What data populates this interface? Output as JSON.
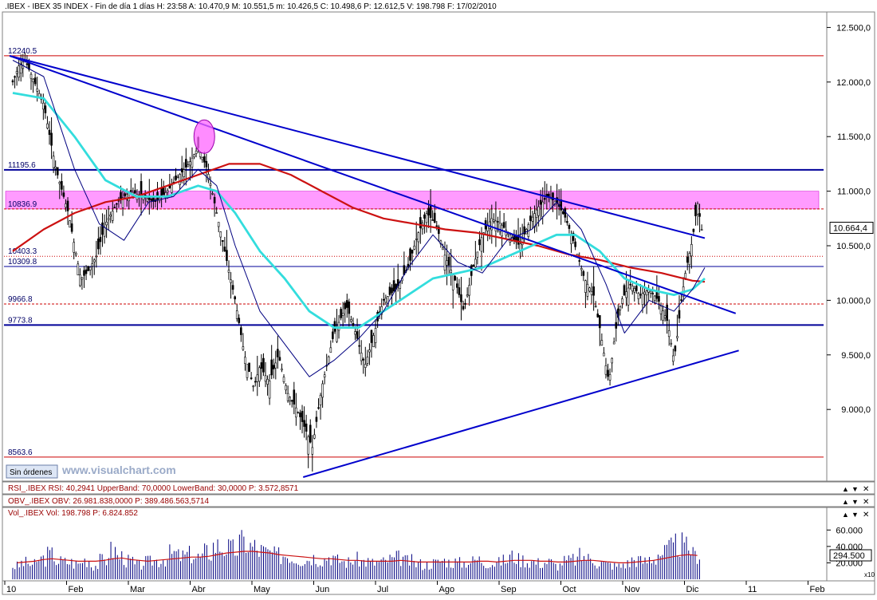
{
  "header": {
    "text": ".IBEX - IBEX 35 INDEX - Fin de día 1 días  H: 23:58  A: 10.470,9  M: 10.551,5  m: 10.426,5  C: 10.498,6  P: 12.612,5  V: 198.798  F: 17/02/2010"
  },
  "price_panel": {
    "current_price_label": "10.664,4",
    "orders_button": "Sin órdenes",
    "watermark": "www.visualchart.com"
  },
  "rsi_panel": {
    "label": "RSI_.IBEX RSI: 40,2941  UpperBand: 70,0000  LowerBand: 30,0000  P: 3.572,8571"
  },
  "obv_panel": {
    "label": "OBV_.IBEX OBV: 26.981.838,0000  P: 389.486.563,5714"
  },
  "vol_panel": {
    "label": "Vol_.IBEX Vol: 198.798  P: 6.824.852",
    "current_label": "294.500",
    "multiplier": "x10"
  },
  "colors": {
    "background": "#ffffff",
    "candles": "#000000",
    "trendlines": "#0000cc",
    "ma_fast": "#000080",
    "ma_mid": "#33dddd",
    "ma_slow": "#cc1111",
    "highlight_band": "#ff66ff",
    "level_red": "#cc0000",
    "level_blue": "#000099",
    "volume_bars": "#000080",
    "volume_avg": "#cc1111"
  },
  "chart_data": {
    "type": "candlestick",
    "title": ".IBEX - IBEX 35 INDEX",
    "x_tick_labels": [
      "10",
      "Feb",
      "Mar",
      "Abr",
      "May",
      "Jun",
      "Jul",
      "Ago",
      "Sep",
      "Oct",
      "Nov",
      "Dic",
      "11",
      "Feb"
    ],
    "y_tick_labels": [
      "12.500,0",
      "12.000,0",
      "11.500,0",
      "11.000,0",
      "10.500,0",
      "10.000,0",
      "9.500,0",
      "9.000,0"
    ],
    "y_ticks": [
      12500,
      12000,
      11500,
      11000,
      10500,
      10000,
      9500,
      9000
    ],
    "y_range": [
      8380,
      12620
    ],
    "levels": [
      {
        "label": "12240.5",
        "value": 12240.5,
        "style": "solid-red"
      },
      {
        "label": "11195.6",
        "value": 11195.6,
        "style": "solid-blue"
      },
      {
        "label": "10836.9",
        "value": 10836.9,
        "style": "dashed-red"
      },
      {
        "label": "10403.3",
        "value": 10403.3,
        "style": "dotted-red"
      },
      {
        "label": "10309.8",
        "value": 10309.8,
        "style": "solid-blue-thin"
      },
      {
        "label": "9966.8",
        "value": 9966.8,
        "style": "dashed-red"
      },
      {
        "label": "9773.8",
        "value": 9773.8,
        "style": "solid-blue"
      },
      {
        "label": "8563.6",
        "value": 8563.6,
        "style": "solid-red"
      }
    ],
    "highlight_band": [
      10836.9,
      11000
    ],
    "price_path": [
      {
        "m": 0.0,
        "v": 12000
      },
      {
        "m": 0.1,
        "v": 12150
      },
      {
        "m": 0.2,
        "v": 12200
      },
      {
        "m": 0.35,
        "v": 12000
      },
      {
        "m": 0.5,
        "v": 11800
      },
      {
        "m": 0.6,
        "v": 11500
      },
      {
        "m": 0.7,
        "v": 11200
      },
      {
        "m": 0.8,
        "v": 11000
      },
      {
        "m": 0.9,
        "v": 10800
      },
      {
        "m": 1.0,
        "v": 10500
      },
      {
        "m": 1.1,
        "v": 10200
      },
      {
        "m": 1.2,
        "v": 10250
      },
      {
        "m": 1.35,
        "v": 10400
      },
      {
        "m": 1.5,
        "v": 10700
      },
      {
        "m": 1.7,
        "v": 10900
      },
      {
        "m": 1.9,
        "v": 11000
      },
      {
        "m": 2.1,
        "v": 10950
      },
      {
        "m": 2.3,
        "v": 10900
      },
      {
        "m": 2.5,
        "v": 11000
      },
      {
        "m": 2.7,
        "v": 11150
      },
      {
        "m": 2.85,
        "v": 11250
      },
      {
        "m": 3.0,
        "v": 11400
      },
      {
        "m": 3.15,
        "v": 11200
      },
      {
        "m": 3.3,
        "v": 10800
      },
      {
        "m": 3.45,
        "v": 10400
      },
      {
        "m": 3.6,
        "v": 10000
      },
      {
        "m": 3.75,
        "v": 9500
      },
      {
        "m": 3.9,
        "v": 9200
      },
      {
        "m": 4.0,
        "v": 9400
      },
      {
        "m": 4.15,
        "v": 9250
      },
      {
        "m": 4.3,
        "v": 9500
      },
      {
        "m": 4.45,
        "v": 9150
      },
      {
        "m": 4.6,
        "v": 9000
      },
      {
        "m": 4.75,
        "v": 8800
      },
      {
        "m": 4.85,
        "v": 8650
      },
      {
        "m": 5.0,
        "v": 9200
      },
      {
        "m": 5.2,
        "v": 9700
      },
      {
        "m": 5.4,
        "v": 9950
      },
      {
        "m": 5.55,
        "v": 9700
      },
      {
        "m": 5.7,
        "v": 9400
      },
      {
        "m": 5.85,
        "v": 9700
      },
      {
        "m": 6.0,
        "v": 10000
      },
      {
        "m": 6.2,
        "v": 10100
      },
      {
        "m": 6.4,
        "v": 10300
      },
      {
        "m": 6.55,
        "v": 10600
      },
      {
        "m": 6.7,
        "v": 10800
      },
      {
        "m": 6.85,
        "v": 10700
      },
      {
        "m": 7.0,
        "v": 10400
      },
      {
        "m": 7.15,
        "v": 10200
      },
      {
        "m": 7.3,
        "v": 9900
      },
      {
        "m": 7.45,
        "v": 10300
      },
      {
        "m": 7.6,
        "v": 10600
      },
      {
        "m": 7.75,
        "v": 10750
      },
      {
        "m": 7.9,
        "v": 10700
      },
      {
        "m": 8.05,
        "v": 10600
      },
      {
        "m": 8.2,
        "v": 10500
      },
      {
        "m": 8.35,
        "v": 10700
      },
      {
        "m": 8.5,
        "v": 10850
      },
      {
        "m": 8.65,
        "v": 10950
      },
      {
        "m": 8.8,
        "v": 10900
      },
      {
        "m": 8.95,
        "v": 10750
      },
      {
        "m": 9.1,
        "v": 10500
      },
      {
        "m": 9.25,
        "v": 10200
      },
      {
        "m": 9.4,
        "v": 10050
      },
      {
        "m": 9.5,
        "v": 9750
      },
      {
        "m": 9.6,
        "v": 9400
      },
      {
        "m": 9.65,
        "v": 9250
      },
      {
        "m": 9.75,
        "v": 9700
      },
      {
        "m": 9.85,
        "v": 10000
      },
      {
        "m": 10.0,
        "v": 10150
      },
      {
        "m": 10.15,
        "v": 10050
      },
      {
        "m": 10.3,
        "v": 10100
      },
      {
        "m": 10.45,
        "v": 10000
      },
      {
        "m": 10.6,
        "v": 9800
      },
      {
        "m": 10.7,
        "v": 9450
      },
      {
        "m": 10.75,
        "v": 9650
      },
      {
        "m": 10.82,
        "v": 10000
      },
      {
        "m": 10.9,
        "v": 10300
      },
      {
        "m": 11.0,
        "v": 10550
      },
      {
        "m": 11.08,
        "v": 10900
      },
      {
        "m": 11.15,
        "v": 10650
      }
    ],
    "trendlines": [
      {
        "from": {
          "m": -0.05,
          "v": 12240
        },
        "to": {
          "m": 11.2,
          "v": 10570
        }
      },
      {
        "from": {
          "m": -0.05,
          "v": 12240
        },
        "to": {
          "m": 11.7,
          "v": 9880
        }
      },
      {
        "from": {
          "m": 4.7,
          "v": 8380
        },
        "to": {
          "m": 11.75,
          "v": 9540
        }
      }
    ],
    "ma_fast": [
      {
        "m": 0.0,
        "v": 12200
      },
      {
        "m": 0.5,
        "v": 12050
      },
      {
        "m": 1.0,
        "v": 11200
      },
      {
        "m": 1.4,
        "v": 10700
      },
      {
        "m": 1.8,
        "v": 10550
      },
      {
        "m": 2.2,
        "v": 10900
      },
      {
        "m": 2.6,
        "v": 10950
      },
      {
        "m": 3.0,
        "v": 11200
      },
      {
        "m": 3.3,
        "v": 11050
      },
      {
        "m": 3.6,
        "v": 10500
      },
      {
        "m": 4.0,
        "v": 9900
      },
      {
        "m": 4.4,
        "v": 9600
      },
      {
        "m": 4.8,
        "v": 9300
      },
      {
        "m": 5.2,
        "v": 9450
      },
      {
        "m": 5.6,
        "v": 9650
      },
      {
        "m": 6.0,
        "v": 9900
      },
      {
        "m": 6.4,
        "v": 10300
      },
      {
        "m": 6.8,
        "v": 10600
      },
      {
        "m": 7.2,
        "v": 10350
      },
      {
        "m": 7.6,
        "v": 10250
      },
      {
        "m": 8.0,
        "v": 10550
      },
      {
        "m": 8.4,
        "v": 10650
      },
      {
        "m": 8.8,
        "v": 10900
      },
      {
        "m": 9.2,
        "v": 10650
      },
      {
        "m": 9.6,
        "v": 10150
      },
      {
        "m": 9.9,
        "v": 9700
      },
      {
        "m": 10.3,
        "v": 10000
      },
      {
        "m": 10.7,
        "v": 9900
      },
      {
        "m": 11.0,
        "v": 10100
      },
      {
        "m": 11.2,
        "v": 10300
      }
    ],
    "ma_mid": [
      {
        "m": 0.0,
        "v": 11900
      },
      {
        "m": 0.5,
        "v": 11850
      },
      {
        "m": 1.0,
        "v": 11500
      },
      {
        "m": 1.5,
        "v": 11100
      },
      {
        "m": 2.0,
        "v": 10950
      },
      {
        "m": 2.5,
        "v": 10950
      },
      {
        "m": 3.0,
        "v": 11050
      },
      {
        "m": 3.3,
        "v": 11000
      },
      {
        "m": 3.6,
        "v": 10800
      },
      {
        "m": 4.0,
        "v": 10450
      },
      {
        "m": 4.4,
        "v": 10200
      },
      {
        "m": 4.8,
        "v": 9900
      },
      {
        "m": 5.2,
        "v": 9750
      },
      {
        "m": 5.6,
        "v": 9750
      },
      {
        "m": 6.0,
        "v": 9900
      },
      {
        "m": 6.4,
        "v": 10050
      },
      {
        "m": 6.8,
        "v": 10200
      },
      {
        "m": 7.2,
        "v": 10250
      },
      {
        "m": 7.6,
        "v": 10300
      },
      {
        "m": 8.0,
        "v": 10400
      },
      {
        "m": 8.4,
        "v": 10500
      },
      {
        "m": 8.8,
        "v": 10600
      },
      {
        "m": 9.1,
        "v": 10600
      },
      {
        "m": 9.5,
        "v": 10450
      },
      {
        "m": 9.9,
        "v": 10200
      },
      {
        "m": 10.3,
        "v": 10100
      },
      {
        "m": 10.7,
        "v": 10050
      },
      {
        "m": 11.0,
        "v": 10100
      },
      {
        "m": 11.2,
        "v": 10200
      }
    ],
    "ma_slow": [
      {
        "m": 0.0,
        "v": 10450
      },
      {
        "m": 0.5,
        "v": 10650
      },
      {
        "m": 1.0,
        "v": 10800
      },
      {
        "m": 1.5,
        "v": 10900
      },
      {
        "m": 2.0,
        "v": 10950
      },
      {
        "m": 2.5,
        "v": 11050
      },
      {
        "m": 3.0,
        "v": 11150
      },
      {
        "m": 3.5,
        "v": 11250
      },
      {
        "m": 4.0,
        "v": 11250
      },
      {
        "m": 4.5,
        "v": 11150
      },
      {
        "m": 5.0,
        "v": 11000
      },
      {
        "m": 5.5,
        "v": 10850
      },
      {
        "m": 6.0,
        "v": 10750
      },
      {
        "m": 6.5,
        "v": 10700
      },
      {
        "m": 7.0,
        "v": 10650
      },
      {
        "m": 7.5,
        "v": 10620
      },
      {
        "m": 8.0,
        "v": 10560
      },
      {
        "m": 8.5,
        "v": 10500
      },
      {
        "m": 9.0,
        "v": 10420
      },
      {
        "m": 9.5,
        "v": 10370
      },
      {
        "m": 10.0,
        "v": 10300
      },
      {
        "m": 10.5,
        "v": 10250
      },
      {
        "m": 11.0,
        "v": 10180
      },
      {
        "m": 11.2,
        "v": 10170
      }
    ],
    "highlight_circle": {
      "m": 3.1,
      "v": 11500
    },
    "volume": {
      "y_tick_labels": [
        "60.000",
        "40.000",
        "20.000"
      ],
      "y_ticks": [
        60000,
        40000,
        20000
      ],
      "y_range": [
        0,
        70000
      ],
      "bars": [
        16000,
        20000,
        18000,
        25000,
        30000,
        22000,
        21000,
        19000,
        24000,
        17000,
        23000,
        35000,
        28000,
        22000,
        17000,
        21000,
        23000,
        25000,
        31000,
        28000,
        30000,
        27000,
        33000,
        41000,
        38000,
        36000,
        45000,
        40000,
        35000,
        32000,
        29000,
        30000,
        26000,
        24000,
        27000,
        25000,
        28000,
        23000,
        21000,
        24000,
        22000,
        20000,
        21000,
        24000,
        26000,
        22000,
        19000,
        18000,
        20000,
        23000,
        21000,
        20000,
        22000,
        24000,
        21000,
        20000,
        23000,
        28000,
        24000,
        22000,
        20000,
        21000,
        17000,
        22000,
        24000,
        28000,
        25000,
        20000,
        18000,
        16000,
        19000,
        24000,
        22000,
        26000,
        32000,
        37000,
        42000,
        38000,
        30000
      ],
      "avg": [
        20000,
        21000,
        22000,
        24000,
        25000,
        24000,
        23000,
        22000,
        22000,
        22000,
        23000,
        25000,
        26000,
        24000,
        23000,
        22000,
        23000,
        24000,
        25000,
        26000,
        27000,
        27000,
        28000,
        30000,
        32000,
        33000,
        34000,
        34000,
        33000,
        32000,
        30000,
        29000,
        28000,
        27000,
        26000,
        25000,
        25000,
        24000,
        23000,
        23000,
        22000,
        22000,
        22000,
        22000,
        23000,
        22000,
        21000,
        21000,
        21000,
        21000,
        21000,
        21000,
        21000,
        22000,
        22000,
        21000,
        22000,
        23000,
        23000,
        23000,
        22000,
        22000,
        21000,
        21000,
        22000,
        23000,
        23000,
        22000,
        21000,
        20000,
        20000,
        21000,
        22000,
        23000,
        25000,
        27000,
        29000,
        30000,
        29000
      ]
    }
  }
}
